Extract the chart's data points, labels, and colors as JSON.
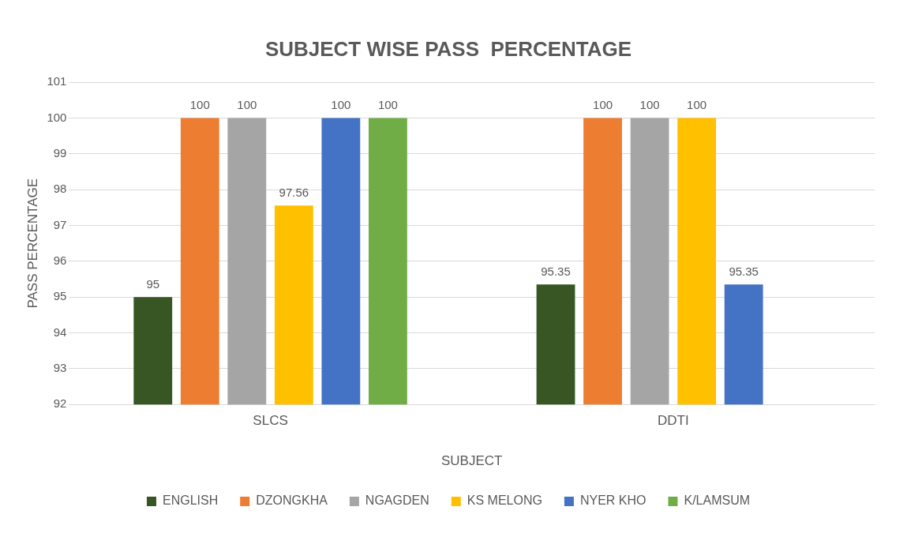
{
  "chart_data": {
    "type": "bar",
    "title": "SUBJECT WISE PASS  PERCENTAGE",
    "xlabel": "SUBJECT",
    "ylabel": "PASS PERCENTAGE",
    "categories": [
      "SLCS",
      "DDTI"
    ],
    "series": [
      {
        "name": "ENGLISH",
        "color": "#375623",
        "values": [
          95,
          95.35
        ]
      },
      {
        "name": "DZONGKHA",
        "color": "#ed7d31",
        "values": [
          100,
          100
        ]
      },
      {
        "name": "NGAGDEN",
        "color": "#a5a5a5",
        "values": [
          100,
          100
        ]
      },
      {
        "name": "KS MELONG",
        "color": "#ffc000",
        "values": [
          97.56,
          100
        ]
      },
      {
        "name": "NYER KHO",
        "color": "#4472c4",
        "values": [
          100,
          95.35
        ]
      },
      {
        "name": "K/LAMSUM",
        "color": "#70ad47",
        "values": [
          100,
          null
        ]
      }
    ],
    "ylim": [
      92,
      101
    ],
    "yticks": [
      92,
      93,
      94,
      95,
      96,
      97,
      98,
      99,
      100,
      101
    ],
    "grid": "y",
    "legend": "bottom",
    "data_labels": true
  }
}
